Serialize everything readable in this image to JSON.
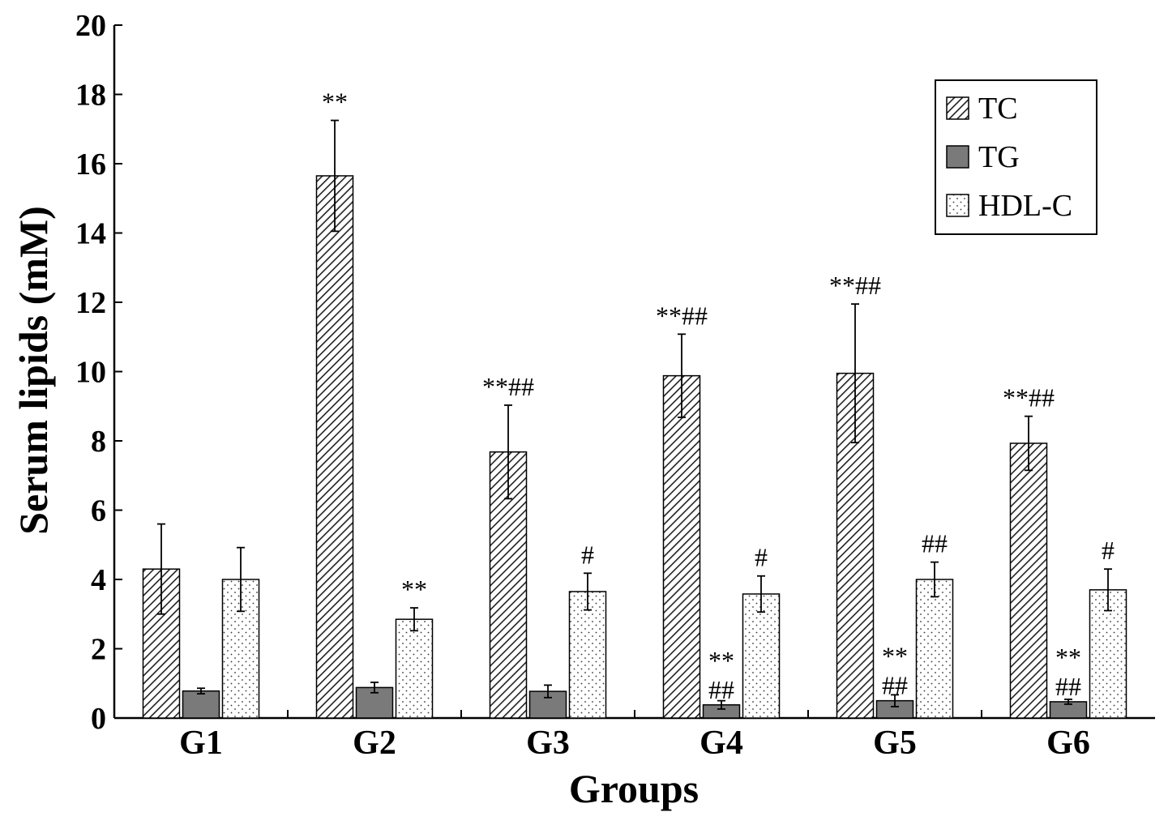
{
  "chart_data": {
    "type": "bar",
    "title": "",
    "xlabel": "Groups",
    "ylabel": "Serum lipids (mM)",
    "ylim": [
      0,
      20
    ],
    "yticks": [
      0,
      2,
      4,
      6,
      8,
      10,
      12,
      14,
      16,
      18,
      20
    ],
    "categories": [
      "G1",
      "G2",
      "G3",
      "G4",
      "G5",
      "G6"
    ],
    "legend_position": "top-right",
    "series": [
      {
        "name": "TC",
        "pattern": "diagonal-hatch",
        "values": [
          4.3,
          15.65,
          7.68,
          9.88,
          9.95,
          7.93
        ],
        "errors": [
          1.3,
          1.6,
          1.35,
          1.2,
          2.0,
          0.78
        ],
        "annotations": [
          "",
          "**",
          "**##",
          "**##",
          "**##",
          "**##"
        ]
      },
      {
        "name": "TG",
        "pattern": "solid-gray",
        "values": [
          0.78,
          0.88,
          0.77,
          0.38,
          0.5,
          0.47
        ],
        "errors": [
          0.08,
          0.15,
          0.18,
          0.12,
          0.17,
          0.07
        ],
        "annotations": [
          "",
          "",
          "",
          "**\n##",
          "**\n##",
          "**\n##"
        ]
      },
      {
        "name": "HDL-C",
        "pattern": "dotted",
        "values": [
          4.0,
          2.85,
          3.65,
          3.58,
          4.0,
          3.7
        ],
        "errors": [
          0.92,
          0.33,
          0.53,
          0.52,
          0.5,
          0.6
        ],
        "annotations": [
          "",
          "**",
          "#",
          "#",
          "##",
          "#"
        ]
      }
    ]
  }
}
